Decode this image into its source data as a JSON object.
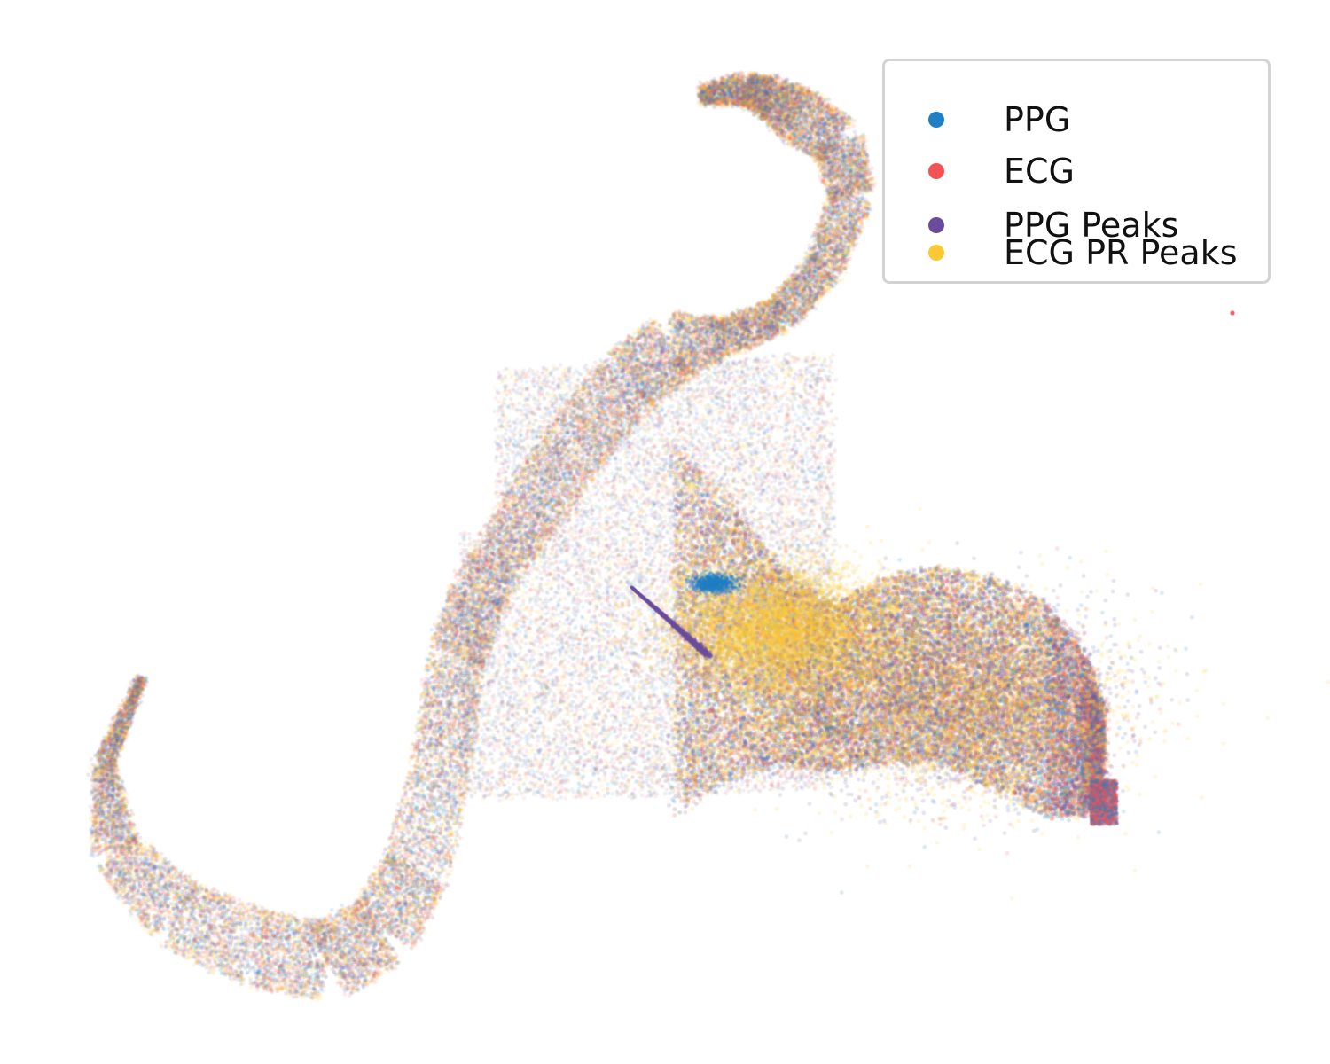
{
  "chart_data": {
    "type": "scatter",
    "title": "",
    "xlabel": "",
    "ylabel": "",
    "axes_visible": false,
    "grid": false,
    "legend_position": "top-right",
    "series": [
      {
        "name": "PPG",
        "color": "#1f7fc4"
      },
      {
        "name": "ECG",
        "color": "#f25356"
      },
      {
        "name": "PPG Peaks",
        "color": "#6a4c9c"
      },
      {
        "name": "ECG PR Peaks",
        "color": "#fcc934"
      }
    ],
    "structure": {
      "center_x": [
        160,
        118,
        130,
        200,
        290,
        370,
        430,
        470,
        500,
        515,
        540,
        590,
        650,
        710,
        760,
        820,
        880,
        930,
        960,
        945,
        900,
        870,
        840,
        790
      ],
      "center_y": [
        765,
        860,
        960,
        1030,
        1070,
        1085,
        1050,
        980,
        850,
        740,
        670,
        590,
        500,
        430,
        390,
        380,
        355,
        300,
        220,
        160,
        130,
        110,
        100,
        108
      ],
      "half_width": [
        4,
        12,
        28,
        40,
        44,
        45,
        42,
        38,
        34,
        32,
        32,
        34,
        38,
        40,
        38,
        22,
        20,
        22,
        25,
        30,
        32,
        24,
        18,
        10
      ],
      "lobe_x": [
        540,
        580,
        640,
        700,
        760,
        820,
        880,
        940,
        1000,
        1060,
        1120,
        1180,
        1220,
        1245
      ],
      "lobe_y_top": [
        600,
        540,
        470,
        440,
        500,
        560,
        640,
        680,
        650,
        640,
        650,
        680,
        730,
        800
      ],
      "lobe_y_bottom": [
        720,
        760,
        820,
        900,
        920,
        880,
        860,
        870,
        860,
        860,
        890,
        920,
        920,
        910
      ],
      "inner_streak_x": [
        712,
        800
      ],
      "inner_streak_y": [
        662,
        740
      ],
      "outlier": {
        "x": 1390,
        "y": 353,
        "series": "ECG"
      }
    }
  }
}
